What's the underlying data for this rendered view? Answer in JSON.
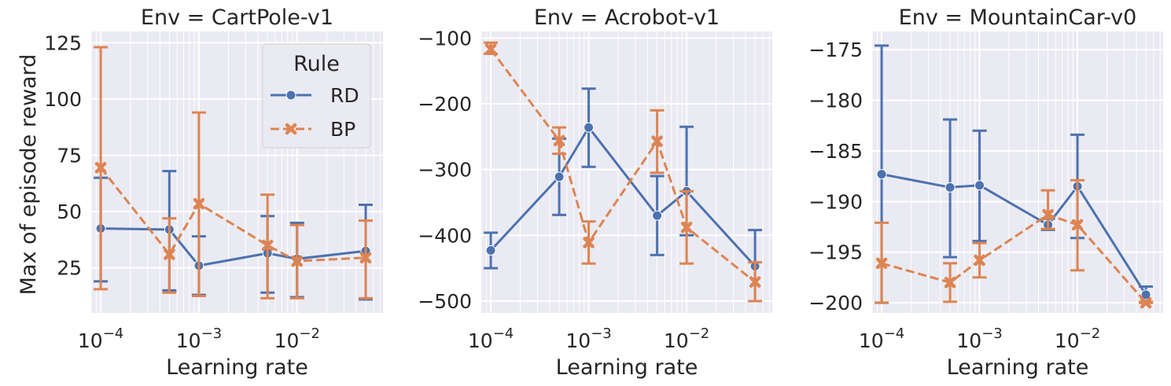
{
  "figure": {
    "ylabel": "Max of episode reward",
    "xlabel": "Learning rate",
    "legend": {
      "title": "Rule",
      "placement": "upper-right of first panel",
      "entries": [
        {
          "label": "RD",
          "color": "#4c72b0",
          "marker": "circle",
          "linestyle": "solid"
        },
        {
          "label": "BP",
          "color": "#dd8452",
          "marker": "x",
          "linestyle": "dashed"
        }
      ]
    }
  },
  "chart_data": [
    {
      "type": "line",
      "title": "Env = CartPole-v1",
      "xlabel": "Learning rate",
      "ylabel": "Max of episode reward",
      "xscale": "log",
      "xlim": [
        8e-05,
        0.075
      ],
      "ylim": [
        5,
        130
      ],
      "x_ticks": [
        0.0001,
        0.001,
        0.01
      ],
      "x_tick_labels": [
        [
          "10",
          "−4"
        ],
        [
          "10",
          "−3"
        ],
        [
          "10",
          "−2"
        ]
      ],
      "y_ticks": [
        25,
        50,
        75,
        100,
        125
      ],
      "grid": true,
      "x": [
        0.0001,
        0.0005,
        0.001,
        0.005,
        0.01,
        0.05
      ],
      "series": [
        {
          "name": "RD",
          "values": [
            42.5,
            42,
            26,
            31.5,
            29,
            32.5
          ],
          "err_low": [
            19,
            15,
            13,
            14,
            12,
            11
          ],
          "err_high": [
            65,
            68,
            39,
            48,
            45,
            53
          ]
        },
        {
          "name": "BP",
          "values": [
            69.5,
            31,
            53.5,
            35,
            28,
            29.5
          ],
          "err_low": [
            15.5,
            14,
            12.5,
            11.5,
            11.5,
            11.5
          ],
          "err_high": [
            123,
            47,
            94,
            57.5,
            44,
            46
          ]
        }
      ]
    },
    {
      "type": "line",
      "title": "Env = Acrobot-v1",
      "xlabel": "Learning rate",
      "xscale": "log",
      "xlim": [
        8e-05,
        0.075
      ],
      "ylim": [
        -518,
        -90
      ],
      "x_ticks": [
        0.0001,
        0.001,
        0.01
      ],
      "x_tick_labels": [
        [
          "10",
          "−4"
        ],
        [
          "10",
          "−3"
        ],
        [
          "10",
          "−2"
        ]
      ],
      "y_ticks": [
        -500,
        -400,
        -300,
        -200,
        -100
      ],
      "y_tick_labels": [
        "−500",
        "−400",
        "−300",
        "−200",
        "−100"
      ],
      "grid": true,
      "x": [
        0.0001,
        0.0005,
        0.001,
        0.005,
        0.01,
        0.05
      ],
      "series": [
        {
          "name": "RD",
          "values": [
            -423,
            -311,
            -236,
            -370,
            -333,
            -447
          ],
          "err_low": [
            -450,
            -369,
            -296,
            -430,
            -400,
            -500
          ],
          "err_high": [
            -396,
            -253,
            -177,
            -310,
            -235,
            -392
          ]
        },
        {
          "name": "BP",
          "values": [
            -117,
            -256,
            -411,
            -257,
            -388,
            -471
          ],
          "err_low": [
            -124,
            -276,
            -443,
            -305,
            -443,
            -500
          ],
          "err_high": [
            -107,
            -236,
            -379,
            -210,
            -333,
            -441
          ]
        }
      ]
    },
    {
      "type": "line",
      "title": "Env = MountainCar-v0",
      "xlabel": "Learning rate",
      "xscale": "log",
      "xlim": [
        8e-05,
        0.075
      ],
      "ylim": [
        -201,
        -173.2
      ],
      "x_ticks": [
        0.0001,
        0.001,
        0.01
      ],
      "x_tick_labels": [
        [
          "10",
          "−4"
        ],
        [
          "10",
          "−3"
        ],
        [
          "10",
          "−2"
        ]
      ],
      "y_ticks": [
        -200,
        -195,
        -190,
        -185,
        -180,
        -175
      ],
      "y_tick_labels": [
        "−200",
        "−195",
        "−190",
        "−185",
        "−180",
        "−175"
      ],
      "grid": true,
      "x": [
        0.0001,
        0.0005,
        0.001,
        0.005,
        0.01,
        0.05
      ],
      "series": [
        {
          "name": "RD",
          "values": [
            -187.3,
            -188.6,
            -188.4,
            -192.3,
            -188.5,
            -199.2
          ],
          "err_low": [
            -200,
            -195.5,
            -193.9,
            -192.8,
            -193.6,
            -200
          ],
          "err_high": [
            -174.6,
            -181.9,
            -183,
            -191.7,
            -183.4,
            -198.4
          ]
        },
        {
          "name": "BP",
          "values": [
            -196.1,
            -198,
            -195.8,
            -191.3,
            -192.3,
            -200
          ],
          "err_low": [
            -200,
            -199.9,
            -197.5,
            -192.7,
            -196.8,
            -200
          ],
          "err_high": [
            -192.1,
            -196.1,
            -194.1,
            -188.9,
            -187.9,
            -199.9
          ]
        }
      ]
    }
  ]
}
